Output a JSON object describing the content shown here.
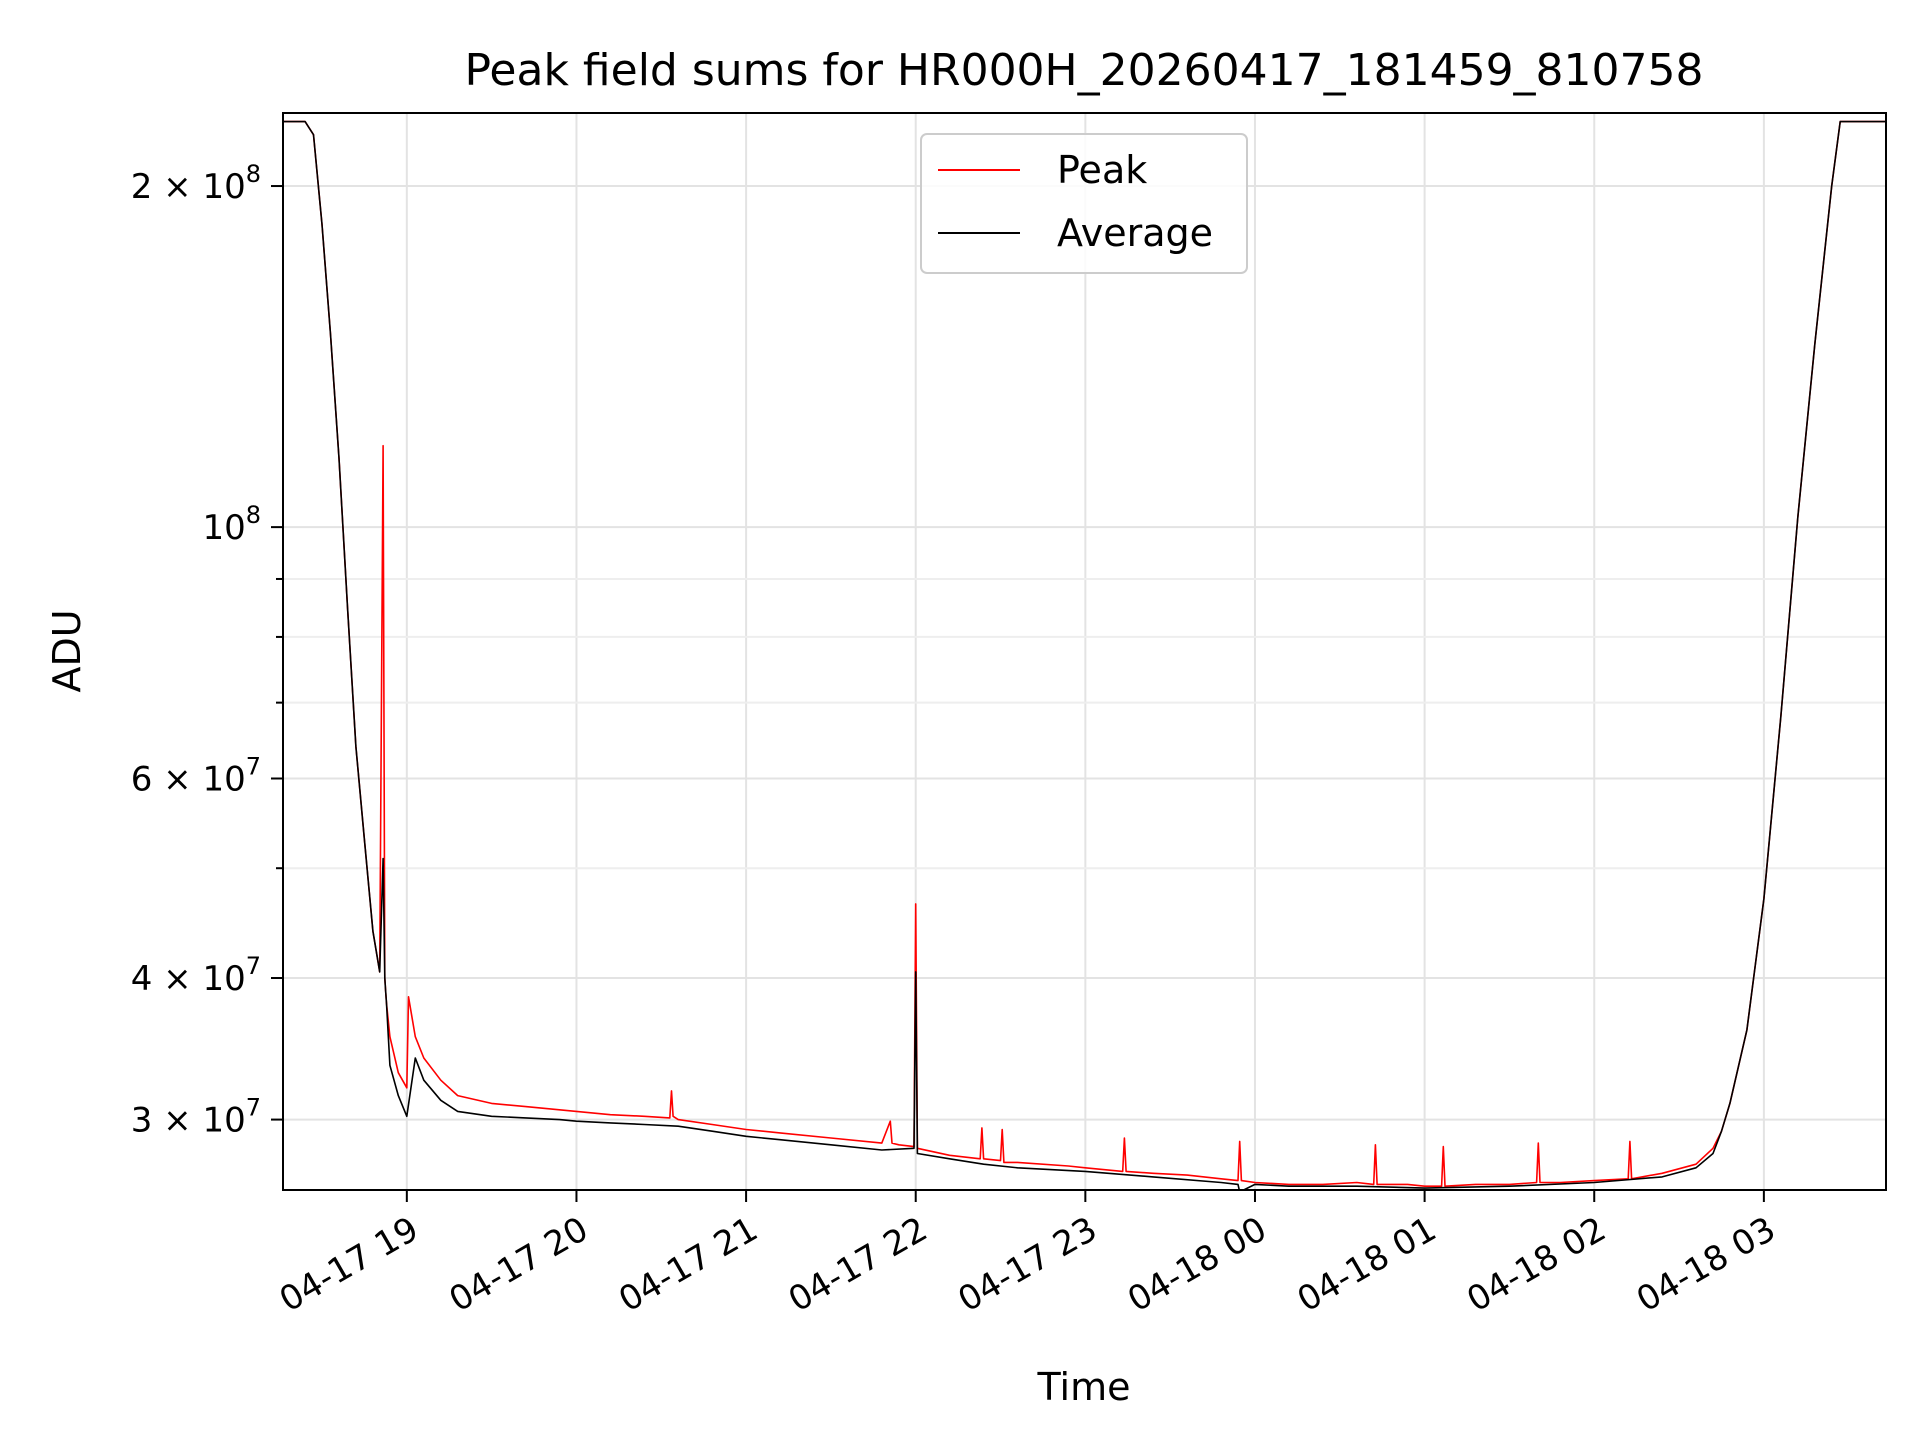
{
  "chart_data": {
    "type": "line",
    "title": "Peak field sums for HR000H_20260417_181459_810758",
    "xlabel": "Time",
    "ylabel": "ADU",
    "yscale": "log",
    "grid": true,
    "legend_position": "top-center",
    "x_unit": "hours since 04-17 18:00",
    "xlim": [
      18.27,
      27.72
    ],
    "ylim": [
      26000000,
      232000000
    ],
    "x_ticks": [
      {
        "value": 19,
        "label": "04-17 19"
      },
      {
        "value": 20,
        "label": "04-17 20"
      },
      {
        "value": 21,
        "label": "04-17 21"
      },
      {
        "value": 22,
        "label": "04-17 22"
      },
      {
        "value": 23,
        "label": "04-17 23"
      },
      {
        "value": 24,
        "label": "04-18 00"
      },
      {
        "value": 25,
        "label": "04-18 01"
      },
      {
        "value": 26,
        "label": "04-18 02"
      },
      {
        "value": 27,
        "label": "04-18 03"
      }
    ],
    "y_ticks": [
      {
        "value": 30000000,
        "mantissa": "3",
        "exp": "7"
      },
      {
        "value": 40000000,
        "mantissa": "4",
        "exp": "7"
      },
      {
        "value": 60000000,
        "mantissa": "6",
        "exp": "7"
      },
      {
        "value": 100000000,
        "mantissa": "",
        "exp": "8"
      },
      {
        "value": 200000000,
        "mantissa": "2",
        "exp": "8"
      }
    ],
    "y_minor_ticks": [
      50000000,
      70000000,
      80000000,
      90000000
    ],
    "series": [
      {
        "name": "Peak",
        "color": "#ff0000",
        "x": [
          18.27,
          18.4,
          18.45,
          18.5,
          18.55,
          18.6,
          18.65,
          18.7,
          18.75,
          18.8,
          18.84,
          18.86,
          18.87,
          18.875,
          18.88,
          18.9,
          18.95,
          19.0,
          19.01,
          19.05,
          19.1,
          19.2,
          19.3,
          19.5,
          19.7,
          19.9,
          20.0,
          20.2,
          20.4,
          20.55,
          20.56,
          20.57,
          20.6,
          20.8,
          21.0,
          21.2,
          21.5,
          21.8,
          21.85,
          21.86,
          21.9,
          21.99,
          22.0,
          22.01,
          22.2,
          22.38,
          22.39,
          22.4,
          22.5,
          22.51,
          22.52,
          22.6,
          22.9,
          23.0,
          23.22,
          23.23,
          23.24,
          23.4,
          23.6,
          23.8,
          23.9,
          23.91,
          23.92,
          24.0,
          24.2,
          24.4,
          24.6,
          24.7,
          24.71,
          24.72,
          24.9,
          25.0,
          25.1,
          25.11,
          25.12,
          25.3,
          25.5,
          25.66,
          25.67,
          25.68,
          25.8,
          26.0,
          26.2,
          26.21,
          26.22,
          26.4,
          26.6,
          26.7,
          26.75,
          26.8,
          26.9,
          27.0,
          27.1,
          27.2,
          27.3,
          27.4,
          27.45,
          27.72
        ],
        "y": [
          228000000,
          228000000,
          222000000,
          185000000,
          148000000,
          115000000,
          85000000,
          64000000,
          53000000,
          44000000,
          40500000,
          118000000,
          40000000,
          39000000,
          38000000,
          35500000,
          33000000,
          32000000,
          38500000,
          35500000,
          34000000,
          32500000,
          31500000,
          31000000,
          30800000,
          30600000,
          30500000,
          30300000,
          30200000,
          30100000,
          31800000,
          30200000,
          30000000,
          29700000,
          29400000,
          29200000,
          28900000,
          28600000,
          29900000,
          28600000,
          28500000,
          28400000,
          46500000,
          28300000,
          27900000,
          27700000,
          29500000,
          27700000,
          27600000,
          29400000,
          27500000,
          27500000,
          27300000,
          27200000,
          27000000,
          28900000,
          27000000,
          26900000,
          26800000,
          26600000,
          26500000,
          28700000,
          26500000,
          26400000,
          26300000,
          26300000,
          26400000,
          26300000,
          28500000,
          26300000,
          26300000,
          26200000,
          26200000,
          28400000,
          26200000,
          26300000,
          26300000,
          26400000,
          28600000,
          26400000,
          26400000,
          26500000,
          26600000,
          28700000,
          26600000,
          26900000,
          27400000,
          28300000,
          29300000,
          31000000,
          36000000,
          47000000,
          68000000,
          102000000,
          145000000,
          200000000,
          228000000,
          228000000
        ]
      },
      {
        "name": "Average",
        "color": "#000000",
        "x": [
          18.27,
          18.4,
          18.45,
          18.5,
          18.55,
          18.6,
          18.65,
          18.7,
          18.75,
          18.8,
          18.84,
          18.86,
          18.87,
          18.875,
          18.88,
          18.9,
          18.95,
          19.0,
          19.05,
          19.1,
          19.2,
          19.3,
          19.5,
          19.7,
          19.9,
          20.0,
          20.2,
          20.4,
          20.6,
          20.8,
          21.0,
          21.2,
          21.5,
          21.8,
          21.99,
          22.0,
          22.01,
          22.2,
          22.4,
          22.6,
          23.0,
          23.4,
          23.8,
          23.9,
          23.91,
          24.0,
          24.2,
          24.6,
          25.0,
          25.5,
          26.0,
          26.4,
          26.6,
          26.7,
          26.75,
          26.8,
          26.9,
          27.0,
          27.1,
          27.2,
          27.3,
          27.4,
          27.45,
          27.72
        ],
        "y": [
          228000000,
          228000000,
          222000000,
          185000000,
          148000000,
          115000000,
          85000000,
          64000000,
          53000000,
          44000000,
          40500000,
          51000000,
          40000000,
          39000000,
          38000000,
          33500000,
          31500000,
          30200000,
          34000000,
          32500000,
          31200000,
          30500000,
          30200000,
          30100000,
          30000000,
          29900000,
          29800000,
          29700000,
          29600000,
          29300000,
          29000000,
          28800000,
          28500000,
          28200000,
          28300000,
          40500000,
          28000000,
          27700000,
          27400000,
          27200000,
          27000000,
          26700000,
          26400000,
          26300000,
          25900000,
          26300000,
          26200000,
          26200000,
          26100000,
          26200000,
          26400000,
          26700000,
          27200000,
          28000000,
          29300000,
          31000000,
          36000000,
          47000000,
          68000000,
          102000000,
          145000000,
          200000000,
          228000000,
          228000000
        ]
      }
    ]
  }
}
